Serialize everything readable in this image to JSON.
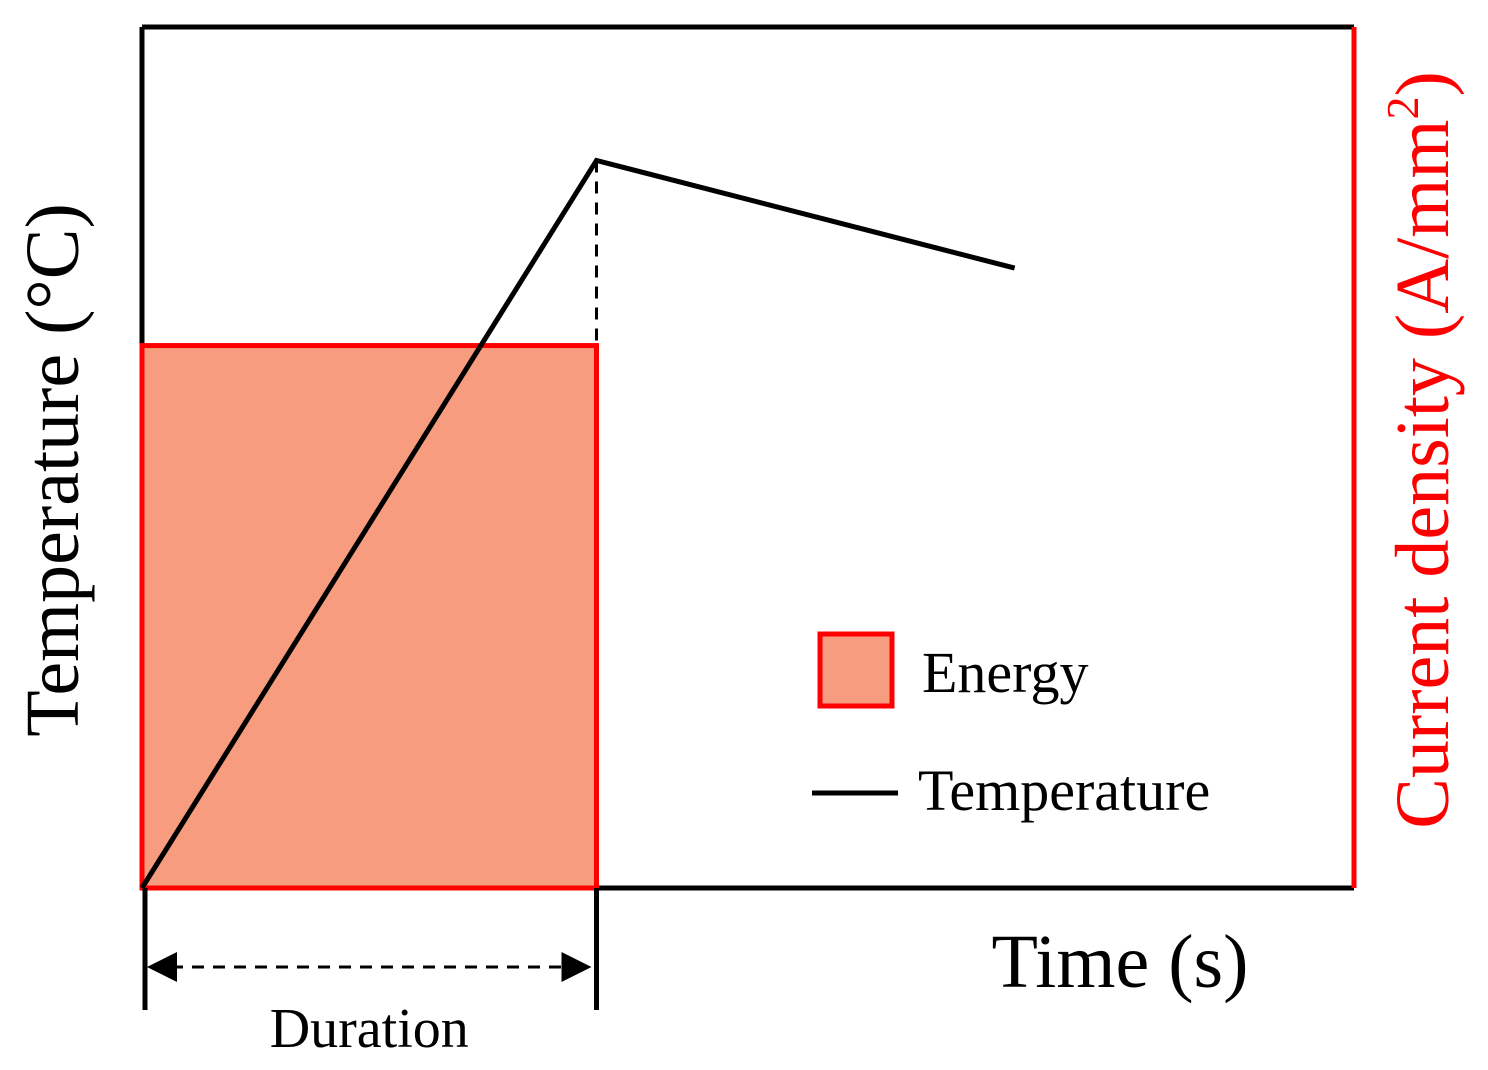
{
  "chart_data": {
    "type": "schematic-line-bar",
    "title": "",
    "xlabel": "Time (s)",
    "ylabel_left": "Temperature (°C)",
    "ylabel_right_prefix": "Current density (A/mm",
    "ylabel_right_superscript": "2",
    "ylabel_right_suffix": ")",
    "xlim": [
      0,
      10
    ],
    "ylim": [
      0,
      10
    ],
    "grid": false,
    "ticks": false,
    "legend_position": "center-right",
    "legend": [
      {
        "label": "Energy",
        "kind": "filled-box",
        "color": "#f89c80",
        "edge": "#ff0000"
      },
      {
        "label": "Temperature",
        "kind": "line",
        "color": "#000000"
      }
    ],
    "series": [
      {
        "name": "Energy",
        "kind": "bar",
        "x_start": 0,
        "x_end": 3.75,
        "value": 6.3,
        "axis": "right"
      },
      {
        "name": "Temperature",
        "kind": "line",
        "axis": "left",
        "x": [
          0,
          3.75,
          7.2
        ],
        "y": [
          0,
          8.45,
          7.2
        ]
      }
    ],
    "annotations": {
      "duration_label": "Duration",
      "duration_x_start": 0,
      "duration_x_end": 3.75,
      "peak_dashed_x": 3.75
    }
  },
  "colors": {
    "energy_fill": "#f89c80",
    "energy_edge": "#ff0000",
    "axis_right": "#ff0000",
    "temperature_line": "#000000"
  }
}
